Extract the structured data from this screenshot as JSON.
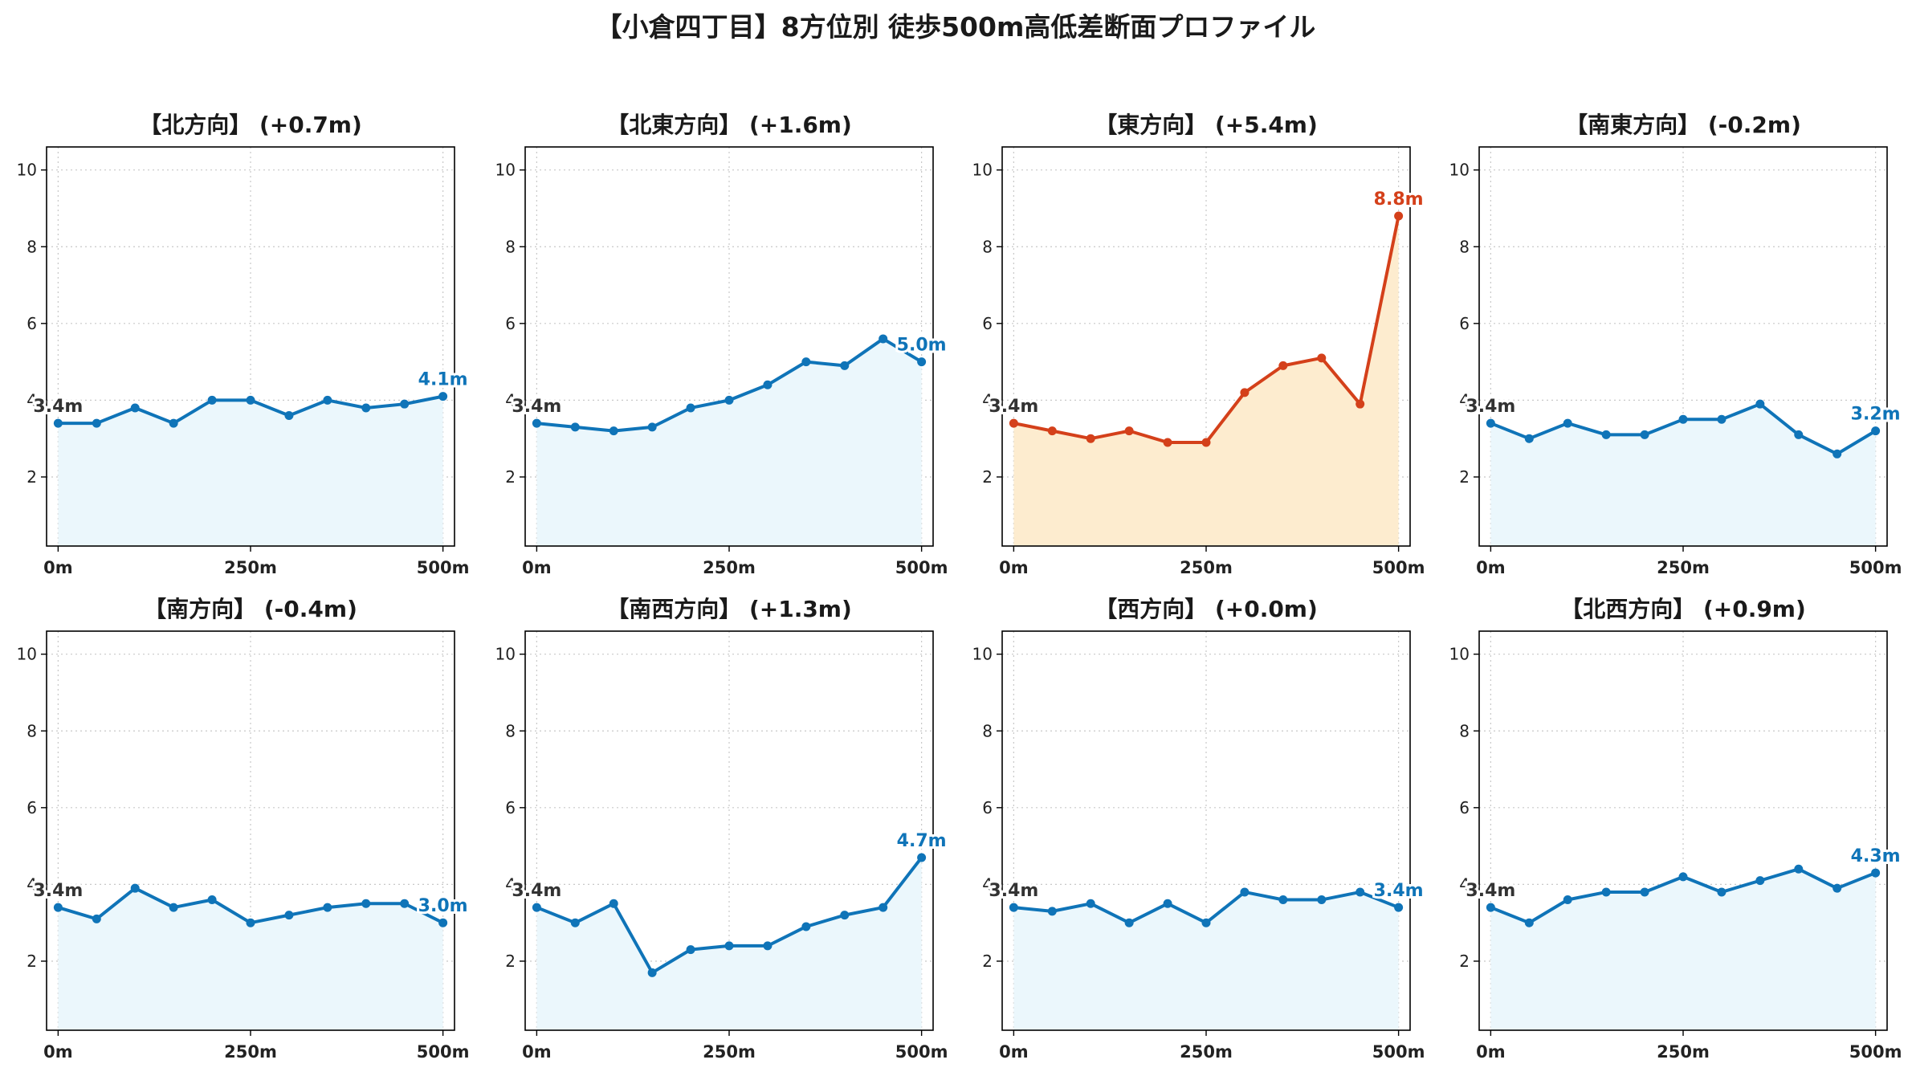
{
  "title": "【小倉四丁目】8方位別 徒歩500m高低差断面プロファイル",
  "colors": {
    "normal_line": "#0f74b8",
    "normal_fill": "#ebf7fc",
    "highlight_line": "#d4401a",
    "highlight_fill": "#fdeccf",
    "start_label": "#333333"
  },
  "chart_data": [
    {
      "type": "area",
      "title": "【北方向】 (+0.7m)",
      "highlight": false,
      "x": [
        0,
        50,
        100,
        150,
        200,
        250,
        300,
        350,
        400,
        450,
        500
      ],
      "values": [
        3.4,
        3.4,
        3.8,
        3.4,
        4.0,
        4.0,
        3.6,
        4.0,
        3.8,
        3.9,
        4.1
      ],
      "start_label": "3.4m",
      "end_label": "4.1m"
    },
    {
      "type": "area",
      "title": "【北東方向】 (+1.6m)",
      "highlight": false,
      "x": [
        0,
        50,
        100,
        150,
        200,
        250,
        300,
        350,
        400,
        450,
        500
      ],
      "values": [
        3.4,
        3.3,
        3.2,
        3.3,
        3.8,
        4.0,
        4.4,
        5.0,
        4.9,
        5.6,
        5.0
      ],
      "start_label": "3.4m",
      "end_label": "5.0m"
    },
    {
      "type": "area",
      "title": "【東方向】 (+5.4m)",
      "highlight": true,
      "x": [
        0,
        50,
        100,
        150,
        200,
        250,
        300,
        350,
        400,
        450,
        500
      ],
      "values": [
        3.4,
        3.2,
        3.0,
        3.2,
        2.9,
        2.9,
        4.2,
        4.9,
        5.1,
        3.9,
        8.8
      ],
      "start_label": "3.4m",
      "end_label": "8.8m"
    },
    {
      "type": "area",
      "title": "【南東方向】 (-0.2m)",
      "highlight": false,
      "x": [
        0,
        50,
        100,
        150,
        200,
        250,
        300,
        350,
        400,
        450,
        500
      ],
      "values": [
        3.4,
        3.0,
        3.4,
        3.1,
        3.1,
        3.5,
        3.5,
        3.9,
        3.1,
        2.6,
        3.2
      ],
      "start_label": "3.4m",
      "end_label": "3.2m"
    },
    {
      "type": "area",
      "title": "【南方向】 (-0.4m)",
      "highlight": false,
      "x": [
        0,
        50,
        100,
        150,
        200,
        250,
        300,
        350,
        400,
        450,
        500
      ],
      "values": [
        3.4,
        3.1,
        3.9,
        3.4,
        3.6,
        3.0,
        3.2,
        3.4,
        3.5,
        3.5,
        3.0
      ],
      "start_label": "3.4m",
      "end_label": "3.0m"
    },
    {
      "type": "area",
      "title": "【南西方向】 (+1.3m)",
      "highlight": false,
      "x": [
        0,
        50,
        100,
        150,
        200,
        250,
        300,
        350,
        400,
        450,
        500
      ],
      "values": [
        3.4,
        3.0,
        3.5,
        1.7,
        2.3,
        2.4,
        2.4,
        2.9,
        3.2,
        3.4,
        4.7
      ],
      "start_label": "3.4m",
      "end_label": "4.7m"
    },
    {
      "type": "area",
      "title": "【西方向】 (+0.0m)",
      "highlight": false,
      "x": [
        0,
        50,
        100,
        150,
        200,
        250,
        300,
        350,
        400,
        450,
        500
      ],
      "values": [
        3.4,
        3.3,
        3.5,
        3.0,
        3.5,
        3.0,
        3.8,
        3.6,
        3.6,
        3.8,
        3.4
      ],
      "start_label": "3.4m",
      "end_label": "3.4m"
    },
    {
      "type": "area",
      "title": "【北西方向】 (+0.9m)",
      "highlight": false,
      "x": [
        0,
        50,
        100,
        150,
        200,
        250,
        300,
        350,
        400,
        450,
        500
      ],
      "values": [
        3.4,
        3.0,
        3.6,
        3.8,
        3.8,
        4.2,
        3.8,
        4.1,
        4.4,
        3.9,
        4.3
      ],
      "start_label": "3.4m",
      "end_label": "4.3m"
    }
  ],
  "axes": {
    "xlim": [
      -15,
      515
    ],
    "ylim": [
      0.2,
      10.6
    ],
    "xticks": [
      0,
      250,
      500
    ],
    "xtick_labels": [
      "0m",
      "250m",
      "500m"
    ],
    "yticks": [
      2,
      4,
      6,
      8,
      10
    ],
    "ytick_labels": [
      "2",
      "4",
      "6",
      "8",
      "10"
    ],
    "grid": true
  }
}
